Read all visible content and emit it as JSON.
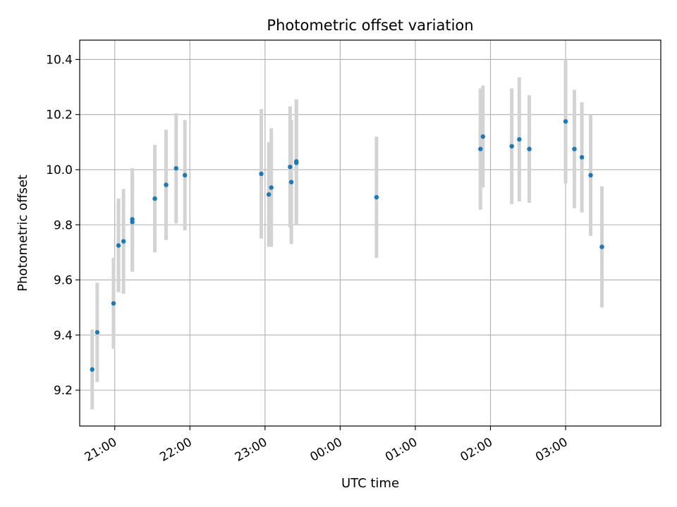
{
  "chart_data": {
    "type": "scatter",
    "title": "Photometric offset variation",
    "xlabel": "UTC time",
    "ylabel": "Photometric offset",
    "x_ticks": [
      "21:00",
      "22:00",
      "23:00",
      "00:00",
      "01:00",
      "02:00",
      "03:00"
    ],
    "y_ticks": [
      "9.2",
      "9.4",
      "9.6",
      "9.8",
      "10.0",
      "10.2",
      "10.4"
    ],
    "xlim": [
      "20:32",
      "04:16"
    ],
    "ylim": [
      9.07,
      10.47
    ],
    "grid": true,
    "colors": {
      "marker": "#1f77b4",
      "errorbar": "#d3d3d3",
      "grid": "#b0b0b0"
    },
    "series": [
      {
        "points": [
          {
            "t": "20:42",
            "y": 9.275,
            "err": 0.145
          },
          {
            "t": "20:46",
            "y": 9.41,
            "err": 0.18
          },
          {
            "t": "20:59",
            "y": 9.515,
            "err": 0.165
          },
          {
            "t": "21:03",
            "y": 9.725,
            "err": 0.17
          },
          {
            "t": "21:07",
            "y": 9.74,
            "err": 0.19
          },
          {
            "t": "21:14",
            "y": 9.82,
            "err": 0.185
          },
          {
            "t": "21:14",
            "y": 9.81,
            "err": 0.18
          },
          {
            "t": "21:32",
            "y": 9.895,
            "err": 0.195
          },
          {
            "t": "21:41",
            "y": 9.945,
            "err": 0.2
          },
          {
            "t": "21:49",
            "y": 10.005,
            "err": 0.2
          },
          {
            "t": "21:56",
            "y": 9.98,
            "err": 0.2
          },
          {
            "t": "22:57",
            "y": 9.985,
            "err": 0.235
          },
          {
            "t": "23:03",
            "y": 9.91,
            "err": 0.19
          },
          {
            "t": "23:05",
            "y": 9.935,
            "err": 0.215
          },
          {
            "t": "23:20",
            "y": 10.01,
            "err": 0.22
          },
          {
            "t": "23:21",
            "y": 9.955,
            "err": 0.225
          },
          {
            "t": "23:25",
            "y": 10.025,
            "err": 0.225
          },
          {
            "t": "23:25",
            "y": 10.03,
            "err": 0.225
          },
          {
            "t": "00:29",
            "y": 9.9,
            "err": 0.22
          },
          {
            "t": "01:52",
            "y": 10.075,
            "err": 0.22
          },
          {
            "t": "01:54",
            "y": 10.12,
            "err": 0.185
          },
          {
            "t": "02:17",
            "y": 10.085,
            "err": 0.21
          },
          {
            "t": "02:23",
            "y": 10.11,
            "err": 0.225
          },
          {
            "t": "02:31",
            "y": 10.075,
            "err": 0.195
          },
          {
            "t": "03:00",
            "y": 10.175,
            "err": 0.225
          },
          {
            "t": "03:07",
            "y": 10.075,
            "err": 0.215
          },
          {
            "t": "03:13",
            "y": 10.045,
            "err": 0.2
          },
          {
            "t": "03:20",
            "y": 9.98,
            "err": 0.22
          },
          {
            "t": "03:29",
            "y": 9.72,
            "err": 0.22
          }
        ]
      }
    ]
  }
}
